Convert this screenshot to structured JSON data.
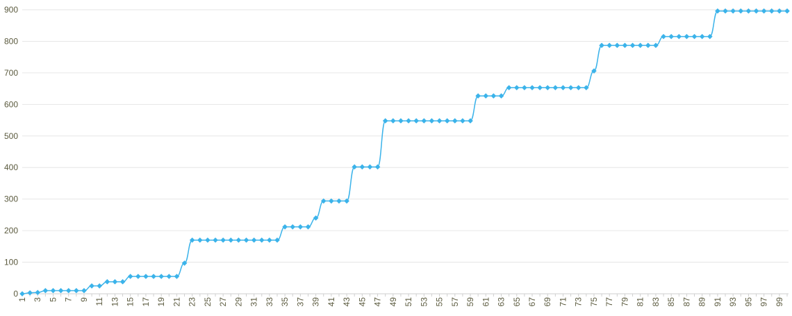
{
  "chart_data": {
    "type": "line",
    "color": "#3bb3ea",
    "grid": true,
    "categories": [
      1,
      null,
      3,
      null,
      5,
      null,
      7,
      null,
      9,
      null,
      11,
      null,
      13,
      null,
      15,
      null,
      17,
      null,
      19,
      null,
      21,
      null,
      23,
      null,
      25,
      null,
      27,
      null,
      29,
      null,
      31,
      null,
      33,
      null,
      35,
      null,
      37,
      null,
      39,
      null,
      41,
      null,
      43,
      null,
      45,
      null,
      47,
      null,
      49,
      null,
      51,
      null,
      53,
      null,
      55,
      null,
      57,
      null,
      59,
      null,
      61,
      null,
      63,
      null,
      65,
      null,
      67,
      null,
      69,
      null,
      71,
      null,
      73,
      null,
      75,
      null,
      77,
      null,
      79,
      null,
      81,
      null,
      83,
      null,
      85,
      null,
      87,
      null,
      89,
      null,
      91,
      null,
      93,
      null,
      95,
      null,
      97,
      null,
      99,
      null
    ],
    "values": [
      0,
      3,
      4,
      10,
      10,
      10,
      10,
      10,
      10,
      25,
      25,
      38,
      38,
      38,
      55,
      55,
      55,
      55,
      55,
      55,
      55,
      97,
      170,
      170,
      170,
      170,
      170,
      170,
      170,
      170,
      170,
      170,
      170,
      170,
      212,
      212,
      212,
      212,
      240,
      294,
      294,
      294,
      294,
      402,
      402,
      402,
      402,
      548,
      548,
      548,
      548,
      548,
      548,
      548,
      548,
      548,
      548,
      548,
      548,
      627,
      627,
      627,
      627,
      653,
      653,
      653,
      653,
      653,
      653,
      653,
      653,
      653,
      653,
      653,
      706,
      787,
      787,
      787,
      787,
      787,
      787,
      787,
      787,
      815,
      815,
      815,
      815,
      815,
      815,
      815,
      896,
      896,
      896,
      896,
      896,
      896,
      896,
      896,
      896,
      896
    ],
    "ylim": [
      0,
      900
    ],
    "yticks": [
      0,
      100,
      200,
      300,
      400,
      500,
      600,
      700,
      800,
      900
    ]
  }
}
